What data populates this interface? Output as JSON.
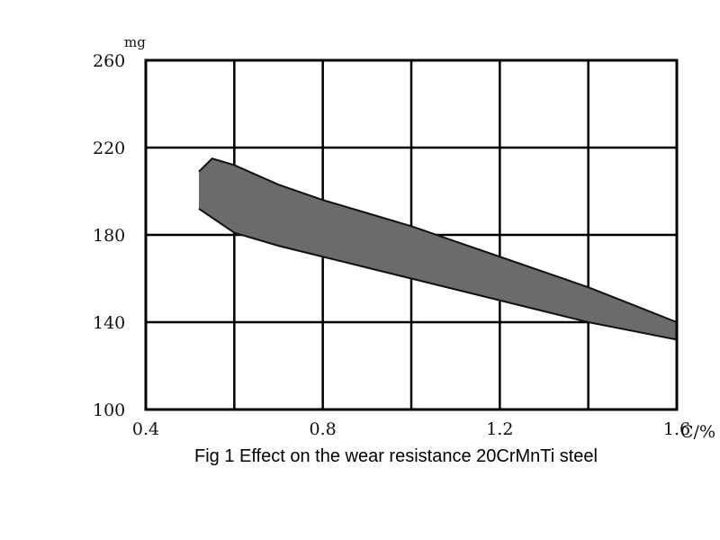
{
  "chart_data": {
    "type": "area",
    "title": "Fig 1 Effect on the wear resistance 20CrMnTi steel",
    "xlabel": "C/%",
    "ylabel": "mg",
    "xlim": [
      0.4,
      1.6
    ],
    "ylim": [
      100,
      260
    ],
    "x_ticks": [
      "0.4",
      "0.8",
      "1.2",
      "1.6"
    ],
    "y_ticks": [
      "260",
      "220",
      "180",
      "140",
      "100"
    ],
    "grid": true,
    "band_color": "#6b6b6b",
    "series": [
      {
        "upper": [
          {
            "x": 0.52,
            "y": 209
          },
          {
            "x": 0.55,
            "y": 215
          },
          {
            "x": 0.6,
            "y": 212
          },
          {
            "x": 0.7,
            "y": 203
          },
          {
            "x": 0.8,
            "y": 196
          },
          {
            "x": 0.9,
            "y": 190
          },
          {
            "x": 1.0,
            "y": 184
          },
          {
            "x": 1.1,
            "y": 177
          },
          {
            "x": 1.2,
            "y": 170
          },
          {
            "x": 1.3,
            "y": 163
          },
          {
            "x": 1.4,
            "y": 156
          },
          {
            "x": 1.5,
            "y": 148
          },
          {
            "x": 1.6,
            "y": 140
          }
        ],
        "lower": [
          {
            "x": 0.52,
            "y": 192
          },
          {
            "x": 0.6,
            "y": 181
          },
          {
            "x": 0.7,
            "y": 175
          },
          {
            "x": 0.8,
            "y": 170
          },
          {
            "x": 0.9,
            "y": 165
          },
          {
            "x": 1.0,
            "y": 160
          },
          {
            "x": 1.1,
            "y": 155
          },
          {
            "x": 1.2,
            "y": 150
          },
          {
            "x": 1.3,
            "y": 145
          },
          {
            "x": 1.4,
            "y": 140
          },
          {
            "x": 1.5,
            "y": 136
          },
          {
            "x": 1.6,
            "y": 132
          }
        ]
      }
    ]
  }
}
